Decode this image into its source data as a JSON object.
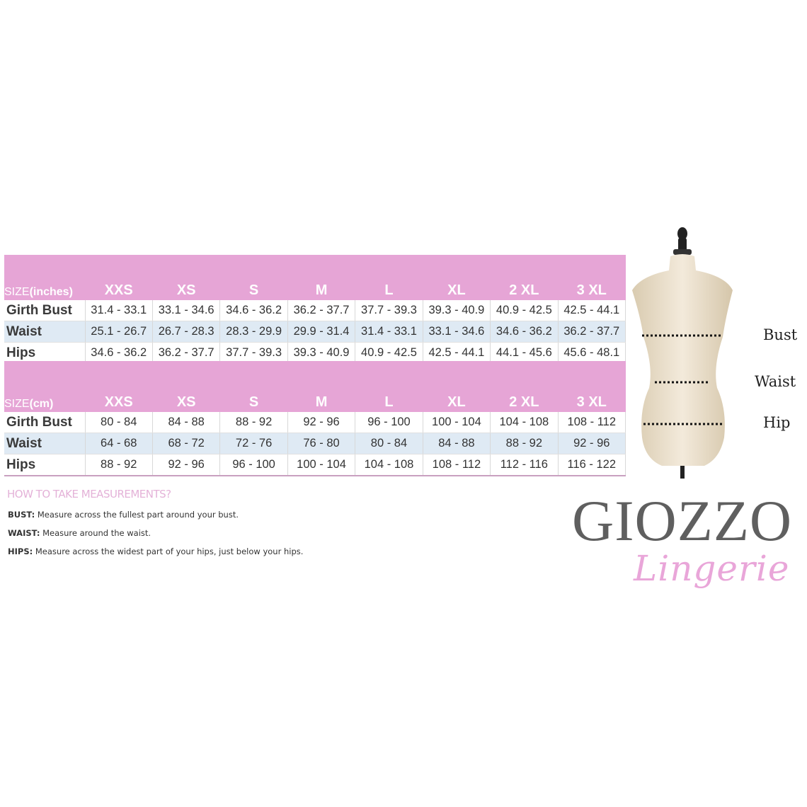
{
  "sizes": [
    "XXS",
    "XS",
    "S",
    "M",
    "L",
    "XL",
    "2 XL",
    "3 XL"
  ],
  "inches": {
    "unit_prefix": "SIZE",
    "unit": "(inches)",
    "rows": [
      {
        "label": "Girth Bust",
        "values": [
          "31.4 - 33.1",
          "33.1 - 34.6",
          "34.6 - 36.2",
          "36.2 - 37.7",
          "37.7 - 39.3",
          "39.3 - 40.9",
          "40.9 - 42.5",
          "42.5 - 44.1"
        ]
      },
      {
        "label": "Waist",
        "values": [
          "25.1 - 26.7",
          "26.7 - 28.3",
          "28.3 - 29.9",
          "29.9 - 31.4",
          "31.4 - 33.1",
          "33.1 - 34.6",
          "34.6 - 36.2",
          "36.2 - 37.7"
        ]
      },
      {
        "label": "Hips",
        "values": [
          "34.6 - 36.2",
          "36.2 - 37.7",
          "37.7 - 39.3",
          "39.3 - 40.9",
          "40.9 - 42.5",
          "42.5 - 44.1",
          "44.1 - 45.6",
          "45.6 - 48.1"
        ]
      }
    ]
  },
  "cm": {
    "unit_prefix": "SIZE",
    "unit": "(cm)",
    "rows": [
      {
        "label": "Girth Bust",
        "values": [
          "80 - 84",
          "84 - 88",
          "88 - 92",
          "92 - 96",
          "96 - 100",
          "100 - 104",
          "104 - 108",
          "108 - 112"
        ]
      },
      {
        "label": "Waist",
        "values": [
          "64 - 68",
          "68 - 72",
          "72 - 76",
          "76 - 80",
          "80 - 84",
          "84 - 88",
          "88 - 92",
          "92 - 96"
        ]
      },
      {
        "label": "Hips",
        "values": [
          "88 - 92",
          "92 - 96",
          "96 - 100",
          "100 - 104",
          "104 - 108",
          "108 - 112",
          "112 - 116",
          "116 - 122"
        ]
      }
    ]
  },
  "howto": {
    "title": "HOW TO TAKE MEASUREMENTS?",
    "lines": [
      {
        "key": "BUST:",
        "text": " Measure across the fullest part around your bust."
      },
      {
        "key": "WAIST:",
        "text": " Measure around the waist."
      },
      {
        "key": "HIPS:",
        "text": " Measure across the widest part of your hips, just below your hips."
      }
    ]
  },
  "mannequin_labels": {
    "bust": "Bust",
    "waist": "Waist",
    "hip": "Hip"
  },
  "logo": {
    "brand": "GIOZZO",
    "sub": "Lingerie"
  },
  "colors": {
    "header_pink": "#e6a5d6",
    "waist_row": "#dfeaf4",
    "logo_gray": "#5f5f5f",
    "script_pink": "#e9a6d9"
  }
}
